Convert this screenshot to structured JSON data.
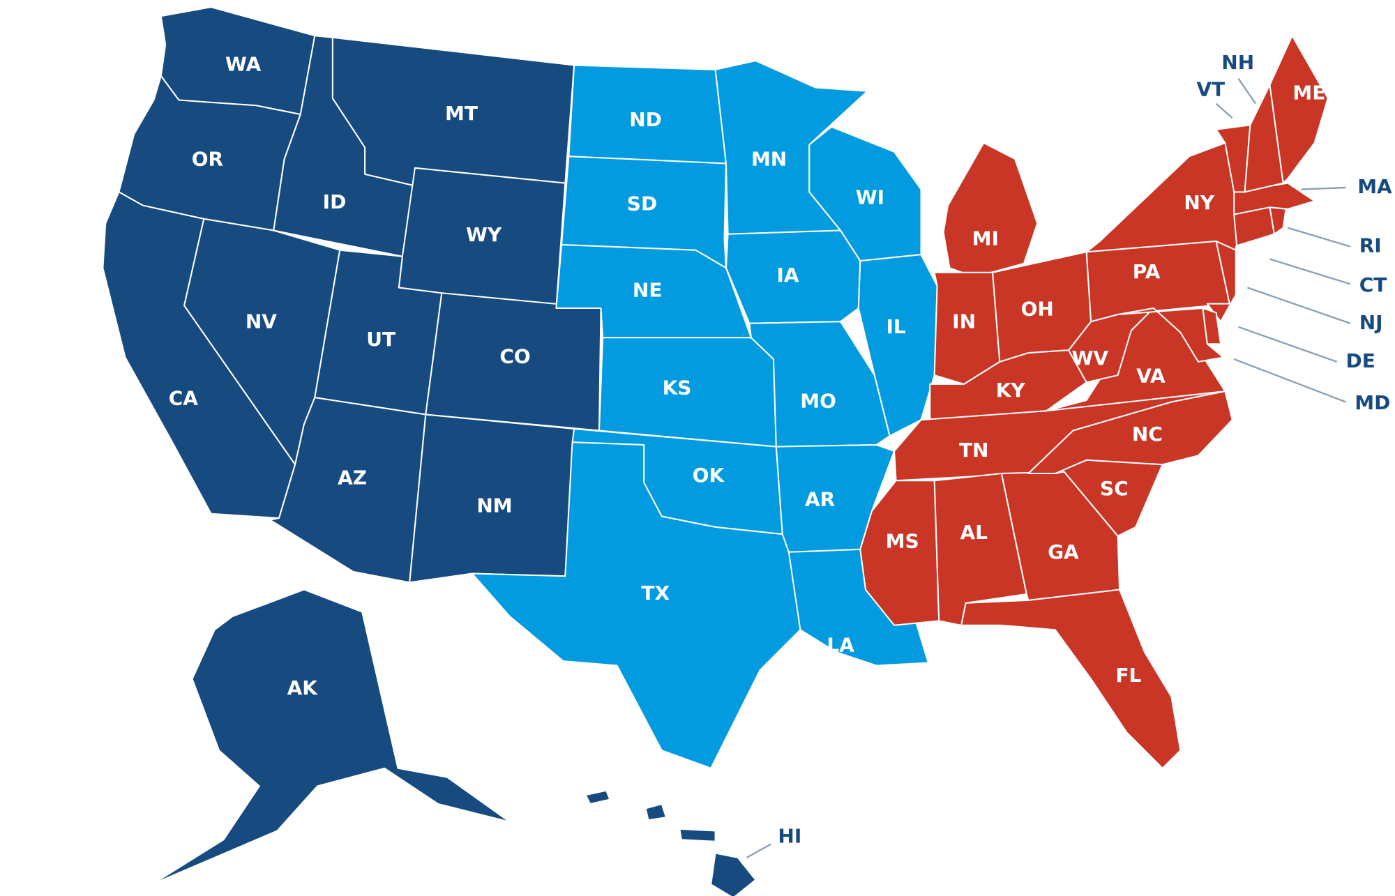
{
  "colors": {
    "west": "#174b80",
    "central": "#039be0",
    "east": "#c93626",
    "callout_line": "#8aa1b8",
    "callout_text": "#174b80",
    "background": "#ffffff"
  },
  "states": [
    {
      "code": "WA",
      "region": "west"
    },
    {
      "code": "OR",
      "region": "west"
    },
    {
      "code": "CA",
      "region": "west"
    },
    {
      "code": "ID",
      "region": "west"
    },
    {
      "code": "NV",
      "region": "west"
    },
    {
      "code": "MT",
      "region": "west"
    },
    {
      "code": "WY",
      "region": "west"
    },
    {
      "code": "UT",
      "region": "west"
    },
    {
      "code": "CO",
      "region": "west"
    },
    {
      "code": "AZ",
      "region": "west"
    },
    {
      "code": "NM",
      "region": "west"
    },
    {
      "code": "AK",
      "region": "west"
    },
    {
      "code": "HI",
      "region": "west"
    },
    {
      "code": "ND",
      "region": "central"
    },
    {
      "code": "SD",
      "region": "central"
    },
    {
      "code": "NE",
      "region": "central"
    },
    {
      "code": "KS",
      "region": "central"
    },
    {
      "code": "OK",
      "region": "central"
    },
    {
      "code": "TX",
      "region": "central"
    },
    {
      "code": "MN",
      "region": "central"
    },
    {
      "code": "IA",
      "region": "central"
    },
    {
      "code": "MO",
      "region": "central"
    },
    {
      "code": "AR",
      "region": "central"
    },
    {
      "code": "LA",
      "region": "central"
    },
    {
      "code": "WI",
      "region": "central"
    },
    {
      "code": "IL",
      "region": "central"
    },
    {
      "code": "MI",
      "region": "east"
    },
    {
      "code": "IN",
      "region": "east"
    },
    {
      "code": "OH",
      "region": "east"
    },
    {
      "code": "KY",
      "region": "east"
    },
    {
      "code": "TN",
      "region": "east"
    },
    {
      "code": "MS",
      "region": "east"
    },
    {
      "code": "AL",
      "region": "east"
    },
    {
      "code": "GA",
      "region": "east"
    },
    {
      "code": "FL",
      "region": "east"
    },
    {
      "code": "SC",
      "region": "east"
    },
    {
      "code": "NC",
      "region": "east"
    },
    {
      "code": "VA",
      "region": "east"
    },
    {
      "code": "WV",
      "region": "east"
    },
    {
      "code": "PA",
      "region": "east"
    },
    {
      "code": "NY",
      "region": "east"
    },
    {
      "code": "NJ",
      "region": "east"
    },
    {
      "code": "DE",
      "region": "east"
    },
    {
      "code": "MD",
      "region": "east"
    },
    {
      "code": "CT",
      "region": "east"
    },
    {
      "code": "RI",
      "region": "east"
    },
    {
      "code": "MA",
      "region": "east"
    },
    {
      "code": "VT",
      "region": "east"
    },
    {
      "code": "NH",
      "region": "east"
    },
    {
      "code": "ME",
      "region": "east"
    }
  ],
  "callouts": [
    "NH",
    "VT",
    "MA",
    "RI",
    "CT",
    "NJ",
    "DE",
    "MD",
    "HI"
  ]
}
